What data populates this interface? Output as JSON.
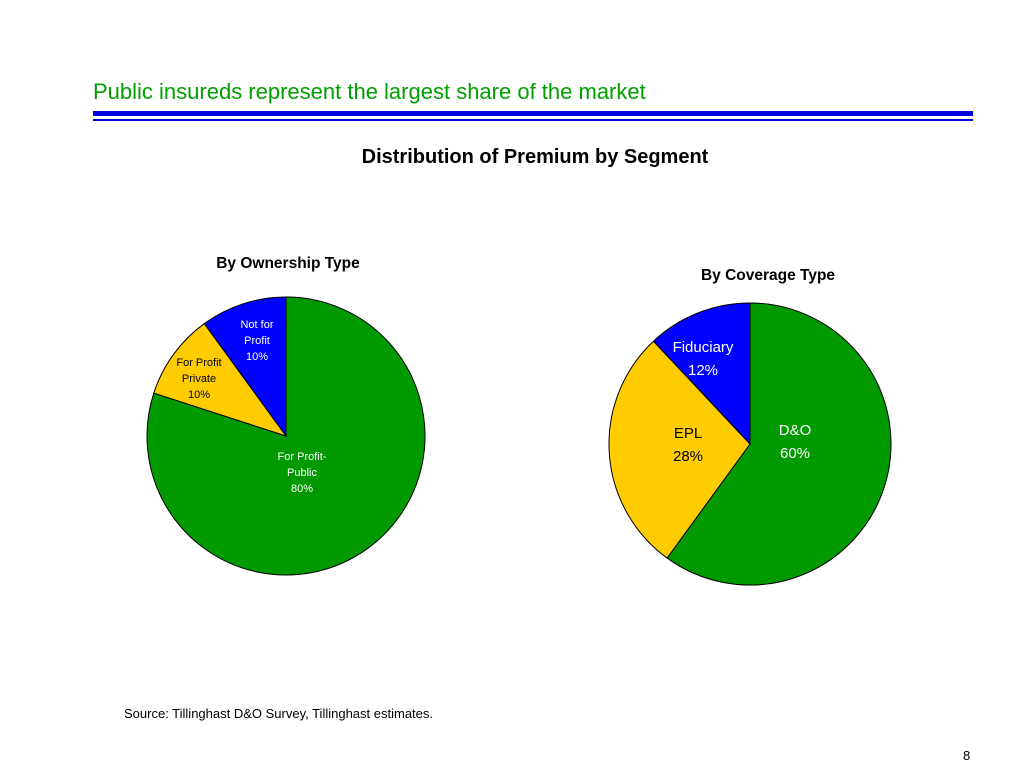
{
  "slide": {
    "title": "Public insureds represent the largest share of the market",
    "title_color": "#00a000",
    "rule_color": "#0000dd",
    "source": "Source: Tillinghast D&O Survey, Tillinghast estimates.",
    "page_number": "8"
  },
  "chart_data": [
    {
      "type": "pie",
      "title": "Distribution of Premium by Segment",
      "subtitle": "By Ownership Type",
      "slices": [
        {
          "label_lines": [
            "For Profit-",
            "Public",
            "80%"
          ],
          "value": 80,
          "color": "#009900",
          "label_color": "#ffffff"
        },
        {
          "label_lines": [
            "For Profit",
            "Private",
            "10%"
          ],
          "value": 10,
          "color": "#ffcc00",
          "label_color": "#000000"
        },
        {
          "label_lines": [
            "Not for",
            "Profit",
            "10%"
          ],
          "value": 10,
          "color": "#0000ff",
          "label_color": "#ffffff"
        }
      ]
    },
    {
      "type": "pie",
      "title": "Distribution of Premium by Segment",
      "subtitle": "By Coverage Type",
      "slices": [
        {
          "label_lines": [
            "D&O",
            "60%"
          ],
          "value": 60,
          "color": "#009900",
          "label_color": "#ffffff"
        },
        {
          "label_lines": [
            "EPL",
            "28%"
          ],
          "value": 28,
          "color": "#ffcc00",
          "label_color": "#000000"
        },
        {
          "label_lines": [
            "Fiduciary",
            "12%"
          ],
          "value": 12,
          "color": "#0000ff",
          "label_color": "#ffffff"
        }
      ]
    }
  ]
}
